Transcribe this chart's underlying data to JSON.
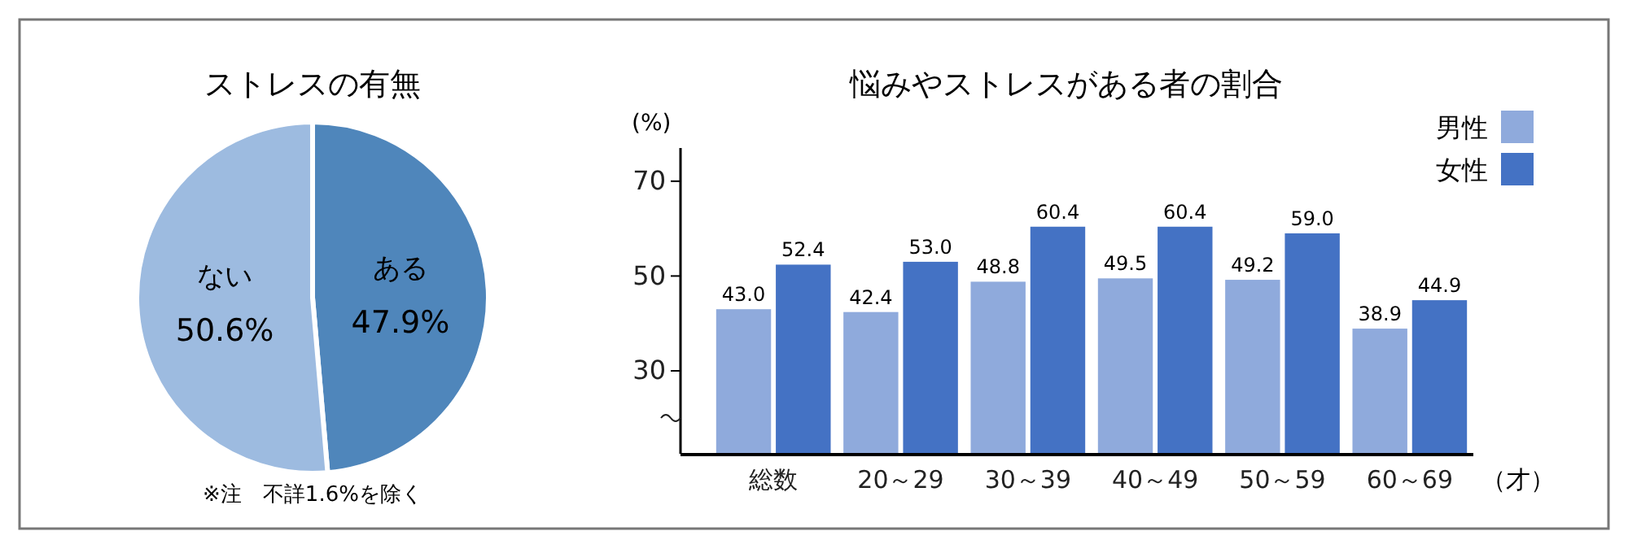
{
  "chart_data": [
    {
      "type": "pie",
      "title": "ストレスの有無",
      "categories": [
        "ある",
        "ない"
      ],
      "values": [
        47.9,
        50.6
      ],
      "colors": [
        "#4f86bb",
        "#9dbbe0"
      ],
      "value_labels": [
        "47.9%",
        "50.6%"
      ],
      "annotations": [
        "※注　不詳1.6%を除く"
      ]
    },
    {
      "type": "bar",
      "title": "悩みやストレスがある者の割合",
      "ylabel": "(%)",
      "xlabel": "（才）",
      "categories": [
        "総数",
        "20～29",
        "30～39",
        "40～49",
        "50～59",
        "60～69"
      ],
      "series": [
        {
          "name": "男性",
          "color": "#8faadc",
          "values": [
            43.0,
            42.4,
            48.8,
            49.5,
            49.2,
            38.9
          ],
          "value_labels": [
            "43.0",
            "42.4",
            "48.8",
            "49.5",
            "49.2",
            "38.9"
          ]
        },
        {
          "name": "女性",
          "color": "#4472c4",
          "values": [
            52.4,
            53.0,
            60.4,
            60.4,
            59.0,
            44.9
          ],
          "value_labels": [
            "52.4",
            "53.0",
            "60.4",
            "60.4",
            "59.0",
            "44.9"
          ]
        }
      ],
      "ylim": [
        12.5,
        77
      ],
      "yticks": [
        30,
        50,
        70
      ],
      "legend": "top right",
      "grid": false
    }
  ]
}
